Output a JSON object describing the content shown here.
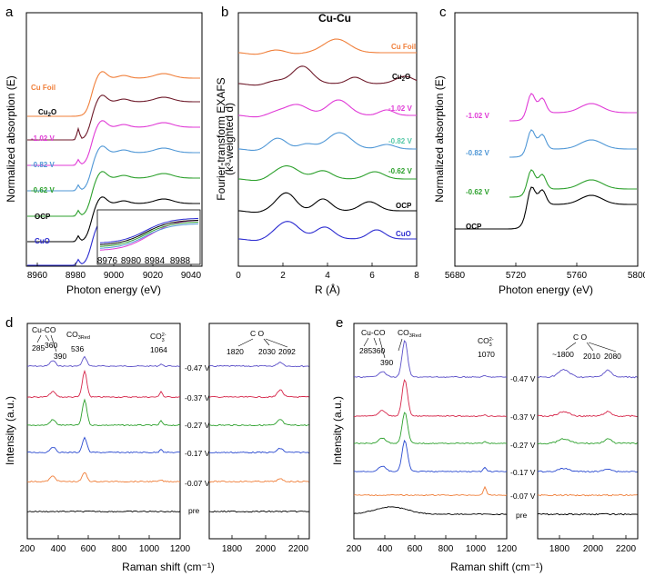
{
  "chart_data": [
    {
      "panel": "a",
      "type": "line",
      "xlabel": "Photon energy (eV)",
      "ylabel": "Normalized absorption (E)",
      "xlim": [
        8955,
        9050
      ],
      "xticks": [
        "8960",
        "8980",
        "9000",
        "9020",
        "9040"
      ],
      "series": [
        {
          "name": "Cu Foil",
          "color": "#f07f3a"
        },
        {
          "name": "Cu2O",
          "color": "#6e1a2a"
        },
        {
          "name": "-1.02 V",
          "color": "#e03ad6"
        },
        {
          "name": "-0.82 V",
          "color": "#4f97d6"
        },
        {
          "name": "-0.62 V",
          "color": "#2ca02c"
        },
        {
          "name": "OCP",
          "color": "#000000"
        },
        {
          "name": "CuO",
          "color": "#2a2ad0"
        }
      ],
      "labels": {
        "cufoil": "Cu Foil",
        "cu2o": "Cu",
        "cu2o_sub": "2",
        "cu2o_tail": "O",
        "v102": "-1.02 V",
        "v082": "-0.82 V",
        "v062": "-0.62 V",
        "ocp": "OCP",
        "cuo": "CuO"
      },
      "inset": {
        "xticks": [
          "8976",
          "8980",
          "8984",
          "8988"
        ]
      }
    },
    {
      "panel": "b",
      "type": "line",
      "title": "Cu-Cu",
      "xlabel": "R (Å)",
      "ylabel": "Fourier-transform EXAFS",
      "ylabel2": "(k³-weighted d)",
      "xlim": [
        0,
        8
      ],
      "xticks": [
        "0",
        "2",
        "4",
        "6",
        "8"
      ],
      "labels": {
        "cufoil": "Cu Foil",
        "cu2o": "Cu",
        "cu2o_sub": "2",
        "cu2o_tail": "O",
        "v102": "-1.02 V",
        "v082": "-0.82 V",
        "v062": "-0.62 V",
        "ocp": "OCP",
        "cuo": "CuO"
      }
    },
    {
      "panel": "c",
      "type": "line",
      "xlabel": "Photon energy (eV)",
      "ylabel": "Normalized absorption (E)",
      "xlim": [
        5680,
        5800
      ],
      "xticks": [
        "5680",
        "5720",
        "5760",
        "5800"
      ],
      "labels": {
        "v102": "-1.02 V",
        "v082": "-0.82 V",
        "v062": "-0.62 V",
        "ocp": "OCP"
      }
    },
    {
      "panel": "d",
      "type": "line",
      "xlabel": "Raman shift (cm⁻¹)",
      "ylabel": "Intensity (a.u.)",
      "xlim_left": [
        200,
        1200
      ],
      "xlim_right": [
        1650,
        2250
      ],
      "xticks_left": [
        "200",
        "400",
        "600",
        "800",
        "1000",
        "1200"
      ],
      "xticks_right": [
        "1800",
        "2000",
        "2200"
      ],
      "annotations": {
        "cuco": "Cu-CO",
        "p285": "285",
        "p360": "360",
        "p390": "390",
        "co3red": "CO",
        "co3red_sub": "3Red",
        "p536": "536",
        "co3": "CO",
        "co3_sup": "2-",
        "co3_sub": "3",
        "p1064": "1064",
        "co": "C  O",
        "p1820": "1820",
        "p2030": "2030",
        "p2092": "2092"
      },
      "potentials": [
        "-0.47 V",
        "-0.37 V",
        "-0.27 V",
        "-0.17 V",
        "-0.07 V",
        "pre"
      ]
    },
    {
      "panel": "e",
      "type": "line",
      "xlabel": "Raman shift (cm⁻¹)",
      "ylabel": "Intensity (a.u.)",
      "xlim_left": [
        200,
        1200
      ],
      "xlim_right": [
        1650,
        2250
      ],
      "xticks_left": [
        "200",
        "400",
        "600",
        "800",
        "1000",
        "1200"
      ],
      "xticks_right": [
        "1800",
        "2000",
        "2200"
      ],
      "annotations": {
        "cuco": "Cu-CO",
        "p285": "285",
        "p360": "360",
        "p390": "390",
        "co3red": "CO",
        "co3red_sub": "3Red",
        "co3": "CO",
        "co3_sup": "2-",
        "co3_sub": "3",
        "p1070": "1070",
        "co": "C  O",
        "p1800": "~1800",
        "p2010": "2010",
        "p2080": "2080"
      },
      "potentials": [
        "-0.47 V",
        "-0.37 V",
        "-0.27 V",
        "-0.17 V",
        "-0.07 V",
        "pre"
      ]
    }
  ],
  "panels": {
    "a": "a",
    "b": "b",
    "c": "c",
    "d": "d",
    "e": "e"
  },
  "colors": {
    "cufoil": "#f07f3a",
    "cu2o": "#6e1a2a",
    "v102": "#e03ad6",
    "v082": "#4f97d6",
    "v062": "#2ca02c",
    "ocp": "#000000",
    "cuo": "#2a2ad0",
    "r047": "#5b4fc8",
    "r037": "#d6264a",
    "r027": "#2ca02c",
    "r017": "#2a4ad0",
    "r007": "#f07f3a",
    "pre": "#000000",
    "v082b": "#55c8a8"
  }
}
